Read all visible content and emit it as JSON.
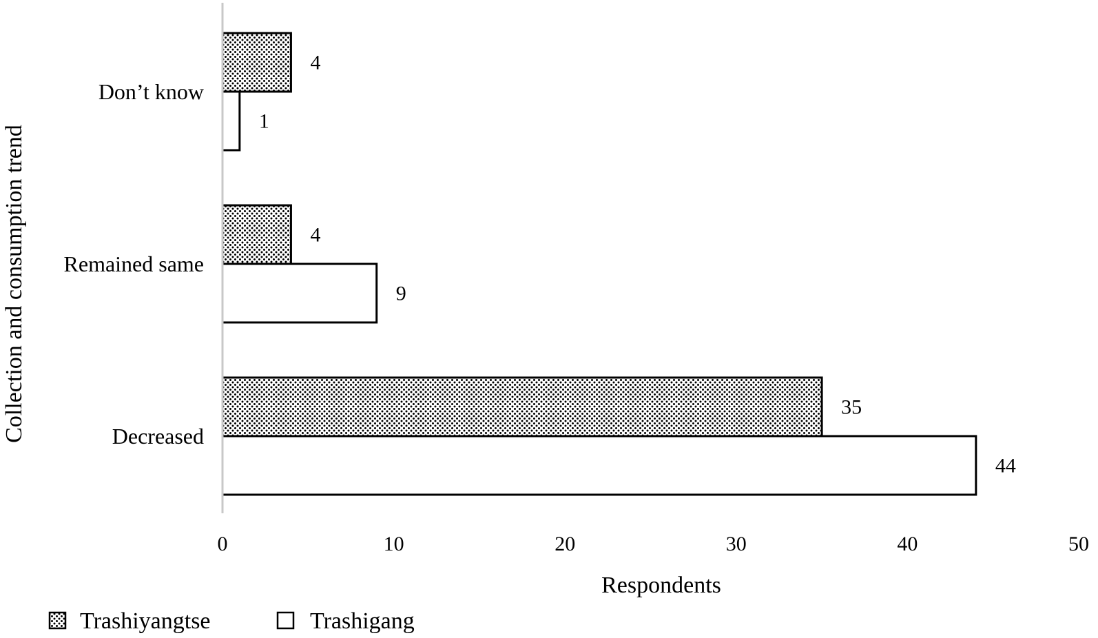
{
  "chart_data": {
    "type": "bar",
    "orientation": "horizontal",
    "categories": [
      "Don’t know",
      "Remained same",
      "Decreased"
    ],
    "series": [
      {
        "name": "Trashiyangtse",
        "values": [
          4,
          4,
          35
        ],
        "fill": "dotted"
      },
      {
        "name": "Trashigang",
        "values": [
          1,
          9,
          44
        ],
        "fill": "#ffffff"
      }
    ],
    "xlabel": "Respondents",
    "ylabel": "Collection and consumption trend",
    "xlim": [
      0,
      50
    ],
    "xticks": [
      0,
      10,
      20,
      30,
      40,
      50
    ],
    "grid": false,
    "legend_position": "bottom-left",
    "data_labels": true,
    "colors": {
      "stroke": "#000000",
      "axis": "#c8c8c8",
      "dot": "#000000"
    }
  }
}
